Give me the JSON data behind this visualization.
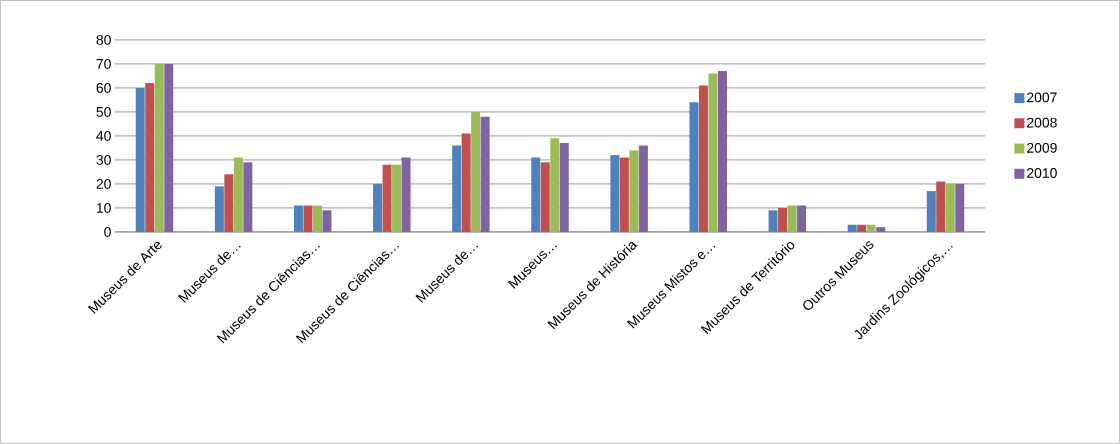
{
  "chart_data": {
    "type": "bar",
    "categories": [
      "Museus de Arte",
      "Museus de…",
      "Museus de Ciências…",
      "Museus de Ciências…",
      "Museus de…",
      "Museus…",
      "Museus de História",
      "Museus Mistos e…",
      "Museus de Território",
      "Outros Museus",
      "Jardins Zoológicos,…"
    ],
    "series": [
      {
        "name": "2007",
        "color": "#4f81bd",
        "values": [
          60,
          19,
          11,
          20,
          36,
          31,
          32,
          54,
          9,
          3,
          17
        ]
      },
      {
        "name": "2008",
        "color": "#c0504d",
        "values": [
          62,
          24,
          11,
          28,
          41,
          29,
          31,
          61,
          10,
          3,
          21
        ]
      },
      {
        "name": "2009",
        "color": "#9bbb59",
        "values": [
          70,
          31,
          11,
          28,
          50,
          39,
          34,
          66,
          11,
          3,
          20
        ]
      },
      {
        "name": "2010",
        "color": "#8064a2",
        "values": [
          70,
          29,
          9,
          31,
          48,
          37,
          36,
          67,
          11,
          2,
          20
        ]
      }
    ],
    "ylim": [
      0,
      80
    ],
    "yticks": [
      0,
      10,
      20,
      30,
      40,
      50,
      60,
      70,
      80
    ],
    "grid": "y",
    "legend": "right"
  }
}
